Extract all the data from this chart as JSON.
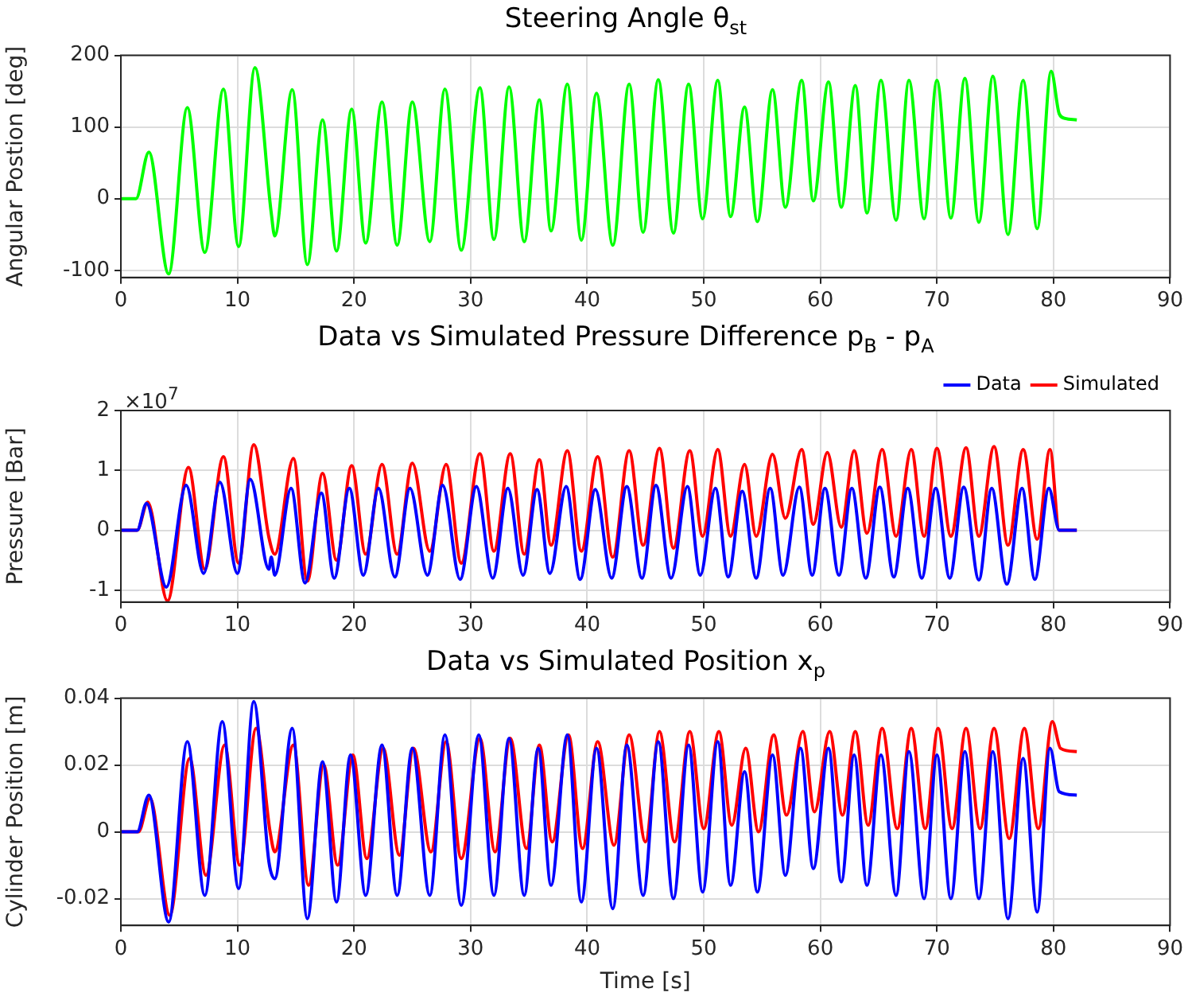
{
  "chart_data": [
    {
      "type": "line",
      "title": "Steering Angle θ$_{st}$",
      "ylabel": "Angular Postion [deg]",
      "xlim": [
        0,
        90
      ],
      "xticks": [
        0,
        10,
        20,
        30,
        40,
        50,
        60,
        70,
        80,
        90
      ],
      "ylim": [
        -110,
        200
      ],
      "yticks": [
        -100,
        0,
        100,
        200
      ],
      "grid": true,
      "series": [
        {
          "color": "#00ff00",
          "x": [
            0,
            1.3,
            2.4,
            4.1,
            5.7,
            7.2,
            8.8,
            10.1,
            11.5,
            12.9,
            13.2,
            14.7,
            16.0,
            17.3,
            18.5,
            19.8,
            21.0,
            22.4,
            23.7,
            25.0,
            26.5,
            27.8,
            29.2,
            30.8,
            32.0,
            33.3,
            34.6,
            35.9,
            36.9,
            38.3,
            39.5,
            40.8,
            42.2,
            43.6,
            44.8,
            46.1,
            47.4,
            48.7,
            49.9,
            51.2,
            52.3,
            53.5,
            54.6,
            55.9,
            57.0,
            58.4,
            59.4,
            60.7,
            61.8,
            63.0,
            64.0,
            65.2,
            66.5,
            67.6,
            68.9,
            70.0,
            71.2,
            72.4,
            73.6,
            74.8,
            76.1,
            77.4,
            78.6,
            79.8,
            80.5,
            81,
            82
          ],
          "values": [
            0,
            0,
            65,
            -105,
            127,
            -75,
            153,
            -67,
            183,
            -20,
            -52,
            152,
            -92,
            110,
            -73,
            125,
            -62,
            135,
            -65,
            135,
            -60,
            153,
            -72,
            155,
            -57,
            156,
            -60,
            138,
            -45,
            160,
            -58,
            147,
            -65,
            160,
            -47,
            166,
            -48,
            160,
            -28,
            165,
            -25,
            128,
            -32,
            152,
            -12,
            165,
            -3,
            163,
            -12,
            158,
            -20,
            165,
            -30,
            165,
            -28,
            165,
            -27,
            168,
            -33,
            171,
            -50,
            165,
            -42,
            178,
            118,
            112,
            110
          ]
        }
      ]
    },
    {
      "type": "line",
      "title": "Data vs Simulated Pressure Difference p$_{B}$ - p$_{A}$",
      "ylabel": "Pressure [Bar]",
      "annotations": [
        "×10$^{7}$"
      ],
      "xlim": [
        0,
        90
      ],
      "xticks": [
        0,
        10,
        20,
        30,
        40,
        50,
        60,
        70,
        80,
        90
      ],
      "ylim": [
        -1.2,
        2
      ],
      "yticks": [
        -1,
        0,
        1,
        2
      ],
      "grid": true,
      "legend": "top right",
      "series": [
        {
          "name": "Data",
          "color": "#0000ff",
          "x": [
            0,
            1.4,
            2.2,
            3.9,
            5.6,
            7.1,
            8.5,
            10.0,
            11.1,
            12.7,
            12.9,
            13.2,
            14.6,
            15.8,
            17.2,
            18.3,
            19.6,
            20.8,
            22.1,
            23.5,
            24.8,
            26.3,
            27.6,
            29.1,
            30.5,
            31.9,
            33.2,
            34.5,
            35.7,
            36.8,
            38.2,
            39.4,
            40.7,
            42.1,
            43.4,
            44.7,
            45.9,
            47.2,
            48.6,
            49.7,
            51.0,
            52.1,
            53.3,
            54.5,
            55.7,
            56.8,
            58.2,
            59.3,
            60.4,
            61.6,
            62.7,
            63.9,
            65.1,
            66.3,
            67.5,
            68.7,
            69.9,
            71.1,
            72.3,
            73.6,
            74.7,
            76.0,
            77.3,
            78.4,
            79.6,
            80.5,
            82
          ],
          "values": [
            0,
            0,
            0.45,
            -0.95,
            0.75,
            -0.72,
            0.8,
            -0.72,
            0.85,
            -0.65,
            -0.45,
            -0.75,
            0.7,
            -0.88,
            0.62,
            -0.8,
            0.7,
            -0.75,
            0.7,
            -0.78,
            0.7,
            -0.75,
            0.75,
            -0.82,
            0.73,
            -0.8,
            0.7,
            -0.75,
            0.68,
            -0.72,
            0.73,
            -0.82,
            0.68,
            -0.8,
            0.73,
            -0.8,
            0.75,
            -0.8,
            0.73,
            -0.75,
            0.7,
            -0.78,
            0.65,
            -0.8,
            0.7,
            -0.75,
            0.72,
            -0.75,
            0.7,
            -0.75,
            0.7,
            -0.8,
            0.72,
            -0.78,
            0.7,
            -0.8,
            0.7,
            -0.8,
            0.72,
            -0.83,
            0.7,
            -0.9,
            0.7,
            -0.82,
            0.7,
            0,
            0
          ]
        },
        {
          "name": "Simulated",
          "color": "#ff0000",
          "x": [
            0,
            1.4,
            2.3,
            4.0,
            5.8,
            7.2,
            8.8,
            10.1,
            11.4,
            12.7,
            13.2,
            14.8,
            16.0,
            17.3,
            18.5,
            19.8,
            21.0,
            22.4,
            23.7,
            25.0,
            26.5,
            27.9,
            29.2,
            30.8,
            32.0,
            33.4,
            34.6,
            35.9,
            36.9,
            38.3,
            39.5,
            40.9,
            42.2,
            43.6,
            44.8,
            46.2,
            47.4,
            48.8,
            49.9,
            51.2,
            52.3,
            53.5,
            54.5,
            55.9,
            57.0,
            58.4,
            59.4,
            60.6,
            61.8,
            62.9,
            64.0,
            65.3,
            66.5,
            67.8,
            68.9,
            70.0,
            71.2,
            72.5,
            73.6,
            74.9,
            76.1,
            77.4,
            78.6,
            79.7,
            80.5,
            82
          ],
          "values": [
            0,
            0,
            0.47,
            -1.18,
            1.05,
            -0.65,
            1.23,
            -0.55,
            1.43,
            -0.12,
            -0.4,
            1.2,
            -0.85,
            0.95,
            -0.5,
            1.08,
            -0.4,
            1.1,
            -0.4,
            1.12,
            -0.35,
            1.1,
            -0.55,
            1.28,
            -0.35,
            1.28,
            -0.4,
            1.18,
            -0.25,
            1.33,
            -0.35,
            1.23,
            -0.45,
            1.33,
            -0.25,
            1.37,
            -0.3,
            1.33,
            -0.1,
            1.35,
            -0.1,
            1.1,
            -0.1,
            1.27,
            0.2,
            1.35,
            0.1,
            1.3,
            0.05,
            1.33,
            -0.05,
            1.35,
            -0.1,
            1.35,
            -0.1,
            1.37,
            -0.1,
            1.38,
            -0.1,
            1.4,
            -0.25,
            1.35,
            -0.15,
            1.35,
            0,
            0
          ]
        }
      ]
    },
    {
      "type": "line",
      "title": "Data vs Simulated Position x$_{p}$",
      "xlabel": "Time [s]",
      "ylabel": "Cylinder Position [m]",
      "xlim": [
        0,
        90
      ],
      "xticks": [
        0,
        10,
        20,
        30,
        40,
        50,
        60,
        70,
        80,
        90
      ],
      "ylim": [
        -0.028,
        0.04
      ],
      "yticks": [
        -0.02,
        0,
        0.02,
        0.04
      ],
      "grid": true,
      "series": [
        {
          "color": "#0000ff",
          "x": [
            0,
            1.4,
            2.4,
            4.1,
            5.7,
            7.2,
            8.7,
            10.1,
            11.4,
            12.7,
            13.2,
            14.7,
            16.0,
            17.3,
            18.5,
            19.7,
            21.0,
            22.4,
            23.7,
            25.0,
            26.5,
            27.8,
            29.2,
            30.7,
            32.0,
            33.3,
            34.6,
            35.8,
            36.9,
            38.3,
            39.5,
            40.8,
            42.2,
            43.4,
            44.8,
            46.1,
            47.4,
            48.7,
            49.9,
            51.2,
            52.3,
            53.5,
            54.6,
            55.9,
            57.0,
            58.3,
            59.4,
            60.7,
            61.8,
            62.9,
            64.0,
            65.2,
            66.5,
            67.6,
            68.9,
            70.0,
            71.2,
            72.4,
            73.6,
            74.8,
            76.1,
            77.4,
            78.6,
            79.7,
            80.5,
            82
          ],
          "values": [
            0,
            0,
            0.011,
            -0.027,
            0.027,
            -0.019,
            0.033,
            -0.017,
            0.039,
            -0.009,
            -0.014,
            0.031,
            -0.026,
            0.021,
            -0.021,
            0.023,
            -0.019,
            0.026,
            -0.019,
            0.025,
            -0.019,
            0.029,
            -0.022,
            0.029,
            -0.019,
            0.028,
            -0.019,
            0.025,
            -0.016,
            0.029,
            -0.021,
            0.025,
            -0.023,
            0.026,
            -0.019,
            0.027,
            -0.02,
            0.026,
            -0.018,
            0.027,
            -0.016,
            0.018,
            -0.018,
            0.023,
            -0.013,
            0.025,
            -0.011,
            0.025,
            -0.015,
            0.023,
            -0.016,
            0.023,
            -0.019,
            0.024,
            -0.02,
            0.023,
            -0.02,
            0.024,
            -0.02,
            0.024,
            -0.026,
            0.022,
            -0.024,
            0.025,
            0.012,
            0.011
          ]
        },
        {
          "color": "#ff0000",
          "x": [
            0,
            1.5,
            2.5,
            4.2,
            5.9,
            7.3,
            8.9,
            10.2,
            11.6,
            12.8,
            13.2,
            14.8,
            16.1,
            17.4,
            18.6,
            19.9,
            21.1,
            22.5,
            23.9,
            25.1,
            26.6,
            27.9,
            29.2,
            30.8,
            32.1,
            33.4,
            34.8,
            35.9,
            37.0,
            38.4,
            39.6,
            40.9,
            42.3,
            43.6,
            45.0,
            46.2,
            47.5,
            48.8,
            50.0,
            51.3,
            52.4,
            53.6,
            54.7,
            56.0,
            57.1,
            58.5,
            59.5,
            60.8,
            61.9,
            63.0,
            64.1,
            65.3,
            66.6,
            67.8,
            69.0,
            70.1,
            71.3,
            72.5,
            73.7,
            74.9,
            76.2,
            77.5,
            78.7,
            79.9,
            80.6,
            82
          ],
          "values": [
            0,
            0,
            0.01,
            -0.025,
            0.022,
            -0.013,
            0.026,
            -0.01,
            0.031,
            0,
            -0.006,
            0.026,
            -0.016,
            0.02,
            -0.01,
            0.023,
            -0.008,
            0.025,
            -0.007,
            0.025,
            -0.006,
            0.027,
            -0.008,
            0.028,
            -0.006,
            0.028,
            -0.005,
            0.026,
            -0.003,
            0.029,
            -0.005,
            0.027,
            -0.004,
            0.029,
            -0.003,
            0.03,
            -0.003,
            0.03,
            0.001,
            0.03,
            0.002,
            0.025,
            0,
            0.029,
            0.005,
            0.03,
            0.006,
            0.03,
            0.005,
            0.03,
            0.002,
            0.031,
            0.001,
            0.031,
            0.001,
            0.031,
            0.001,
            0.031,
            0.001,
            0.031,
            -0.002,
            0.031,
            0.001,
            0.033,
            0.025,
            0.024
          ]
        }
      ]
    }
  ]
}
